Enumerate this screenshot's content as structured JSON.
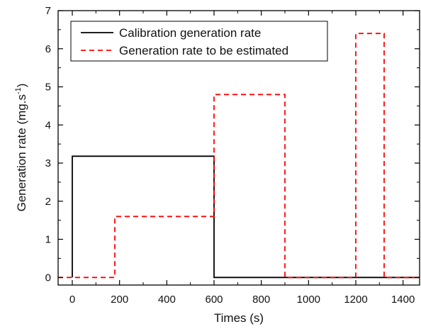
{
  "chart_data": {
    "type": "line",
    "xlabel": "Times (s)",
    "ylabel_main": "Generation rate (mg.s",
    "ylabel_sup": "-1",
    "ylabel_close": ")",
    "xlim": [
      -60,
      1470
    ],
    "ylim": [
      -0.2,
      7
    ],
    "x_ticks": [
      0,
      200,
      400,
      600,
      800,
      1000,
      1200,
      1400
    ],
    "y_ticks": [
      0,
      1,
      2,
      3,
      4,
      5,
      6,
      7
    ],
    "grid": false,
    "legend_placement": "top-left",
    "series": [
      {
        "name": "Calibration generation rate",
        "style": "solid",
        "color": "#000000",
        "x": [
          0,
          0,
          600,
          600,
          1470
        ],
        "y": [
          0,
          3.18,
          3.18,
          0,
          0
        ]
      },
      {
        "name": "Generation rate to be estimated",
        "style": "dashed",
        "color": "#ff0000",
        "x": [
          -60,
          180,
          180,
          600,
          600,
          900,
          900,
          1200,
          1200,
          1320,
          1320,
          1470
        ],
        "y": [
          0,
          0,
          1.6,
          1.6,
          4.8,
          4.8,
          0,
          0,
          6.4,
          6.4,
          0,
          0
        ]
      }
    ]
  }
}
